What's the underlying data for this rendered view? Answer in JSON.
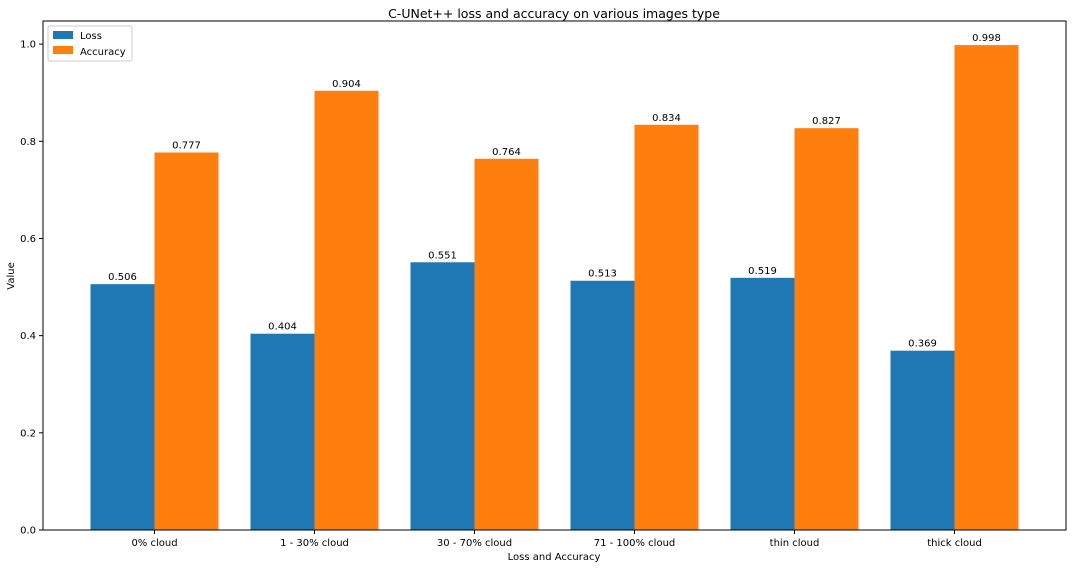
{
  "chart_data": {
    "type": "bar",
    "title": "C-UNet++ loss and accuracy on various images type",
    "xlabel": "Loss and Accuracy",
    "ylabel": "Value",
    "categories": [
      "0% cloud",
      "1 - 30% cloud",
      "30 - 70% cloud",
      "71 - 100% cloud",
      "thin cloud",
      "thick cloud"
    ],
    "series": [
      {
        "name": "Loss",
        "color": "#1f77b4",
        "values": [
          0.506,
          0.404,
          0.551,
          0.513,
          0.519,
          0.369
        ]
      },
      {
        "name": "Accuracy",
        "color": "#ff7f0e",
        "values": [
          0.777,
          0.904,
          0.764,
          0.834,
          0.827,
          0.998
        ]
      }
    ],
    "data_labels": {
      "Loss": [
        "0.506",
        "0.404",
        "0.551",
        "0.513",
        "0.519",
        "0.369"
      ],
      "Accuracy": [
        "0.777",
        "0.904",
        "0.764",
        "0.834",
        "0.827",
        "0.998"
      ]
    },
    "yticks": [
      "0.0",
      "0.2",
      "0.4",
      "0.6",
      "0.8",
      "1.0"
    ],
    "ylim": [
      0,
      1.0476
    ],
    "grid": false,
    "legend_position": "top-left"
  }
}
